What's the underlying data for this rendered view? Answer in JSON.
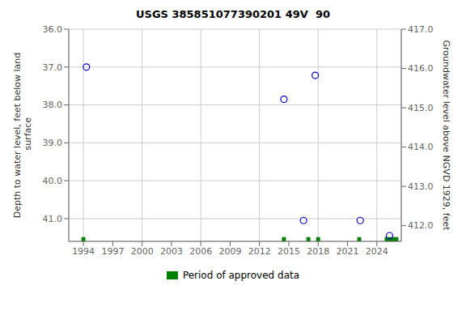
{
  "chart_data": {
    "type": "scatter",
    "title": "USGS 385851077390201 49V  90",
    "y_label": "Depth to water level, feet below land\n surface",
    "y2_label": "Groundwater level above NGVD 1929, feet",
    "xlim": [
      1992.5,
      2026.5
    ],
    "xticks": [
      1994,
      1997,
      2000,
      2003,
      2006,
      2009,
      2012,
      2015,
      2018,
      2021,
      2024
    ],
    "ylim": [
      41.6,
      36.0
    ],
    "yticks": [
      {
        "value": 36.0,
        "label": "36.0"
      },
      {
        "value": 37.0,
        "label": "37.0"
      },
      {
        "value": 38.0,
        "label": "38.0"
      },
      {
        "value": 39.0,
        "label": "39.0"
      },
      {
        "value": 40.0,
        "label": "40.0"
      },
      {
        "value": 41.0,
        "label": "41.0"
      }
    ],
    "y2lim": [
      411.6,
      417.0
    ],
    "y2ticks": [
      {
        "value": 417.0,
        "label": "417.0"
      },
      {
        "value": 416.0,
        "label": "416.0"
      },
      {
        "value": 415.0,
        "label": "415.0"
      },
      {
        "value": 414.0,
        "label": "414.0"
      },
      {
        "value": 413.0,
        "label": "413.0"
      },
      {
        "value": 412.0,
        "label": "412.0"
      }
    ],
    "grid": true,
    "legend": "bottom",
    "series": [
      {
        "type": "scatter",
        "color": "#0000cc",
        "marker": "open_circle",
        "x": [
          1994.3,
          2014.5,
          2017.7,
          2016.5,
          2022.3,
          2025.3
        ],
        "values": [
          37.0,
          37.85,
          37.22,
          41.05,
          41.05,
          41.45
        ]
      },
      {
        "type": "span",
        "name": "Period of approved data",
        "color": "#008000",
        "ranges": [
          [
            1993.8,
            1994.2
          ],
          [
            2014.3,
            2014.7
          ],
          [
            2016.8,
            2017.2
          ],
          [
            2017.8,
            2018.2
          ],
          [
            2022.0,
            2022.4
          ],
          [
            2024.8,
            2026.2
          ]
        ]
      }
    ]
  }
}
